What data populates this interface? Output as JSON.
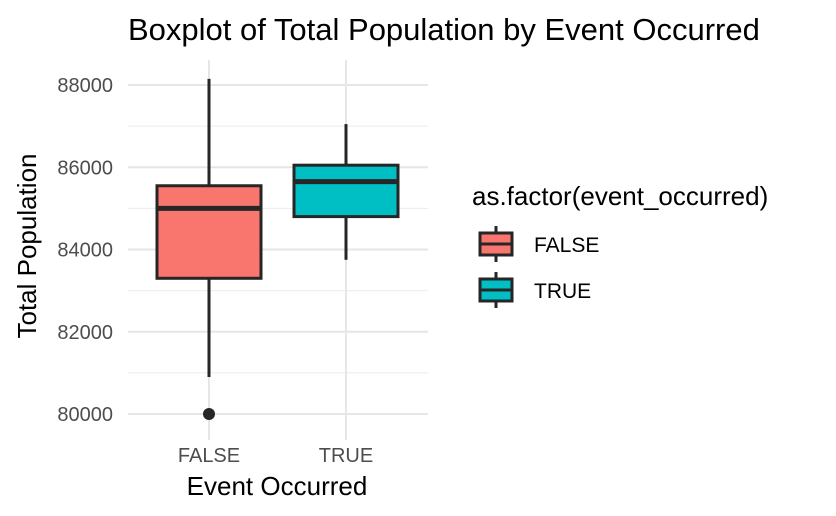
{
  "chart_data": {
    "type": "boxplot",
    "title": "Boxplot of Total Population by Event Occurred",
    "xlabel": "Event Occurred",
    "ylabel": "Total Population",
    "categories": [
      "FALSE",
      "TRUE"
    ],
    "ylim": [
      79500,
      88200
    ],
    "yticks": [
      80000,
      82000,
      84000,
      86000,
      88000
    ],
    "ytick_labels": [
      "80000",
      "82000",
      "84000",
      "86000",
      "88000"
    ],
    "grid": true,
    "boxes": [
      {
        "category": "FALSE",
        "whisker_low": 80900,
        "q1": 83300,
        "median": 85000,
        "q3": 85550,
        "whisker_high": 88150,
        "outliers": [
          80000
        ],
        "color": "#F8766D"
      },
      {
        "category": "TRUE",
        "whisker_low": 83750,
        "q1": 84800,
        "median": 85650,
        "q3": 86050,
        "whisker_high": 87050,
        "outliers": [],
        "color": "#00BFC4"
      }
    ],
    "legend": {
      "title": "as.factor(event_occurred)",
      "placement": "right",
      "entries": [
        {
          "label": "FALSE",
          "color": "#F8766D"
        },
        {
          "label": "TRUE",
          "color": "#00BFC4"
        }
      ]
    }
  }
}
